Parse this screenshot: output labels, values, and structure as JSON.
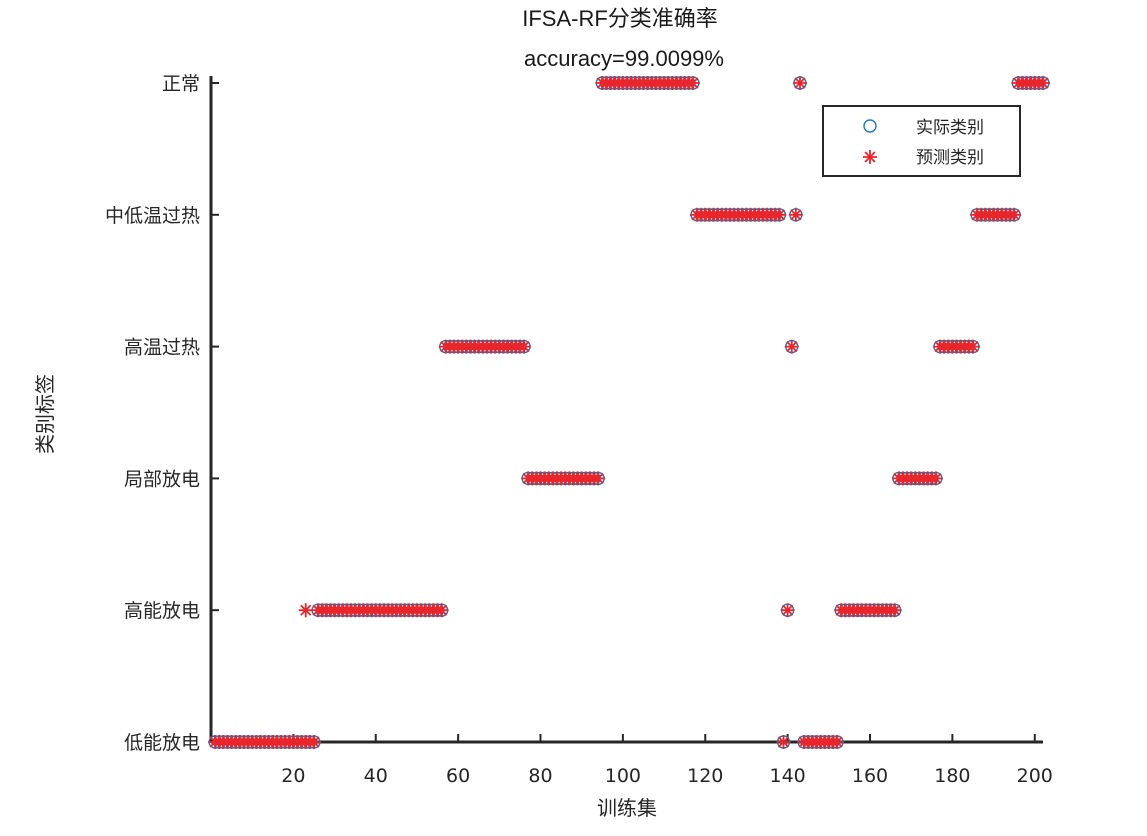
{
  "chart_data": {
    "type": "scatter",
    "title": "IFSA-RF分类准确率",
    "subtitle": "accuracy=99.0099%",
    "xlabel": "训练集",
    "ylabel": "类别标签",
    "xlim": [
      0,
      202
    ],
    "ylim": [
      1,
      6
    ],
    "x_ticks": [
      20,
      40,
      60,
      80,
      100,
      120,
      140,
      160,
      180,
      200
    ],
    "y_categories": [
      "低能放电",
      "高能放电",
      "局部放电",
      "高温过热",
      "中低温过热",
      "正常"
    ],
    "legend_position": "top-right",
    "grid": false,
    "series": [
      {
        "name": "实际类别",
        "marker": "circle",
        "color": "#1f77b4",
        "segments": [
          {
            "x_start": 1,
            "x_end": 25,
            "y": 1
          },
          {
            "x_start": 26,
            "x_end": 56,
            "y": 2
          },
          {
            "x_start": 57,
            "x_end": 76,
            "y": 4
          },
          {
            "x_start": 77,
            "x_end": 94,
            "y": 3
          },
          {
            "x_start": 95,
            "x_end": 117,
            "y": 6
          },
          {
            "x_start": 118,
            "x_end": 138,
            "y": 5
          },
          {
            "x_start": 139,
            "x_end": 139,
            "y": 1
          },
          {
            "x_start": 140,
            "x_end": 140,
            "y": 2
          },
          {
            "x_start": 141,
            "x_end": 141,
            "y": 4
          },
          {
            "x_start": 142,
            "x_end": 142,
            "y": 5
          },
          {
            "x_start": 143,
            "x_end": 143,
            "y": 6
          },
          {
            "x_start": 144,
            "x_end": 152,
            "y": 1
          },
          {
            "x_start": 153,
            "x_end": 166,
            "y": 2
          },
          {
            "x_start": 167,
            "x_end": 176,
            "y": 3
          },
          {
            "x_start": 177,
            "x_end": 185,
            "y": 4
          },
          {
            "x_start": 186,
            "x_end": 195,
            "y": 5
          },
          {
            "x_start": 196,
            "x_end": 202,
            "y": 6
          }
        ]
      },
      {
        "name": "预测类别",
        "marker": "star",
        "color": "#e8262b",
        "segments": [
          {
            "x_start": 1,
            "x_end": 25,
            "y": 1
          },
          {
            "x_start": 23,
            "x_end": 23,
            "y": 2
          },
          {
            "x_start": 26,
            "x_end": 56,
            "y": 2
          },
          {
            "x_start": 57,
            "x_end": 76,
            "y": 4
          },
          {
            "x_start": 77,
            "x_end": 94,
            "y": 3
          },
          {
            "x_start": 95,
            "x_end": 117,
            "y": 6
          },
          {
            "x_start": 118,
            "x_end": 138,
            "y": 5
          },
          {
            "x_start": 139,
            "x_end": 139,
            "y": 1
          },
          {
            "x_start": 140,
            "x_end": 140,
            "y": 2
          },
          {
            "x_start": 141,
            "x_end": 141,
            "y": 4
          },
          {
            "x_start": 142,
            "x_end": 142,
            "y": 5
          },
          {
            "x_start": 143,
            "x_end": 143,
            "y": 6
          },
          {
            "x_start": 144,
            "x_end": 152,
            "y": 1
          },
          {
            "x_start": 153,
            "x_end": 166,
            "y": 2
          },
          {
            "x_start": 167,
            "x_end": 176,
            "y": 3
          },
          {
            "x_start": 177,
            "x_end": 185,
            "y": 4
          },
          {
            "x_start": 186,
            "x_end": 195,
            "y": 5
          },
          {
            "x_start": 196,
            "x_end": 202,
            "y": 6
          }
        ]
      }
    ]
  }
}
